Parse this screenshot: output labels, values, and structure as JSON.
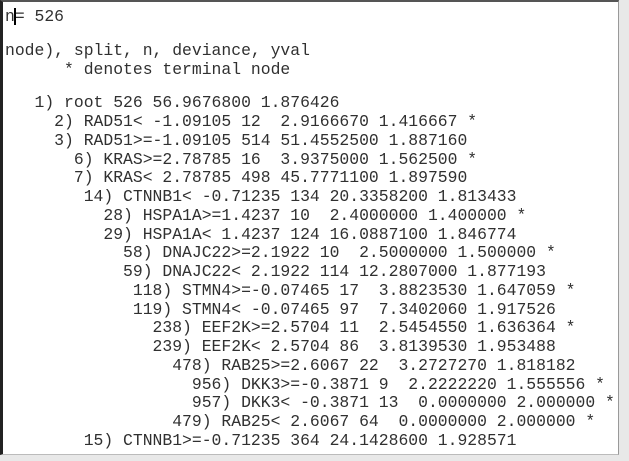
{
  "console": {
    "lines": [
      "n= 526",
      "",
      "node), split, n, deviance, yval",
      "      * denotes terminal node",
      "",
      "   1) root 526 56.9676800 1.876426",
      "     2) RAD51< -1.09105 12  2.9166670 1.416667 *",
      "     3) RAD51>=-1.09105 514 51.4552500 1.887160",
      "       6) KRAS>=2.78785 16  3.9375000 1.562500 *",
      "       7) KRAS< 2.78785 498 45.7771100 1.897590",
      "        14) CTNNB1< -0.71235 134 20.3358200 1.813433",
      "          28) HSPA1A>=1.4237 10  2.4000000 1.400000 *",
      "          29) HSPA1A< 1.4237 124 16.0887100 1.846774",
      "            58) DNAJC22>=2.1922 10  2.5000000 1.500000 *",
      "            59) DNAJC22< 2.1922 114 12.2807000 1.877193",
      "             118) STMN4>=-0.07465 17  3.8823530 1.647059 *",
      "             119) STMN4< -0.07465 97  7.3402060 1.917526",
      "               238) EEF2K>=2.5704 11  2.5454550 1.636364 *",
      "               239) EEF2K< 2.5704 86  3.8139530 1.953488",
      "                 478) RAB25>=2.6067 22  3.2727270 1.818182",
      "                   956) DKK3>=-0.3871 9  2.2222220 1.555556 *",
      "                   957) DKK3< -0.3871 13  0.0000000 2.000000 *",
      "                 479) RAB25< 2.6067 64  0.0000000 2.000000 *",
      "        15) CTNNB1>=-0.71235 364 24.1428600 1.928571"
    ]
  }
}
